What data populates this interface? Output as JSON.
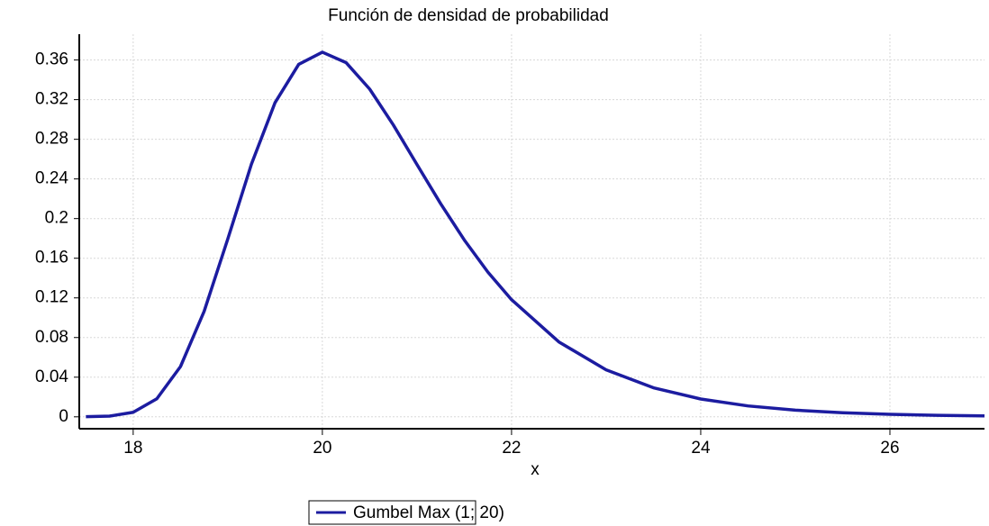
{
  "chart_data": {
    "type": "line",
    "title": "Función de densidad de probabilidad",
    "x_label": "x",
    "x": [
      17.5,
      17.75,
      18,
      18.25,
      18.5,
      18.75,
      19,
      19.25,
      19.5,
      19.75,
      20,
      20.25,
      20.5,
      20.75,
      21,
      21.25,
      21.5,
      21.75,
      22,
      22.5,
      23,
      23.5,
      24,
      24.5,
      25,
      25.5,
      26,
      26.5,
      27
    ],
    "series": [
      {
        "name": "Gumbel Max (1; 20)",
        "color": "#1c1ca0",
        "values": [
          0.0001,
          0.0007,
          0.0046,
          0.0182,
          0.0507,
          0.1064,
          0.1794,
          0.2549,
          0.317,
          0.3556,
          0.3679,
          0.3574,
          0.3307,
          0.2945,
          0.2546,
          0.2151,
          0.1785,
          0.146,
          0.1182,
          0.0756,
          0.0474,
          0.0293,
          0.018,
          0.011,
          0.0067,
          0.0041,
          0.0025,
          0.0015,
          0.0009
        ]
      }
    ],
    "xlim": [
      17.43,
      27
    ],
    "ylim": [
      -0.012,
      0.386
    ],
    "xticks": [
      18,
      20,
      22,
      24,
      26
    ],
    "yticks": [
      0,
      0.04,
      0.08,
      0.12,
      0.16,
      0.2,
      0.24,
      0.28,
      0.32,
      0.36
    ],
    "grid": true,
    "legend": "bottom"
  }
}
